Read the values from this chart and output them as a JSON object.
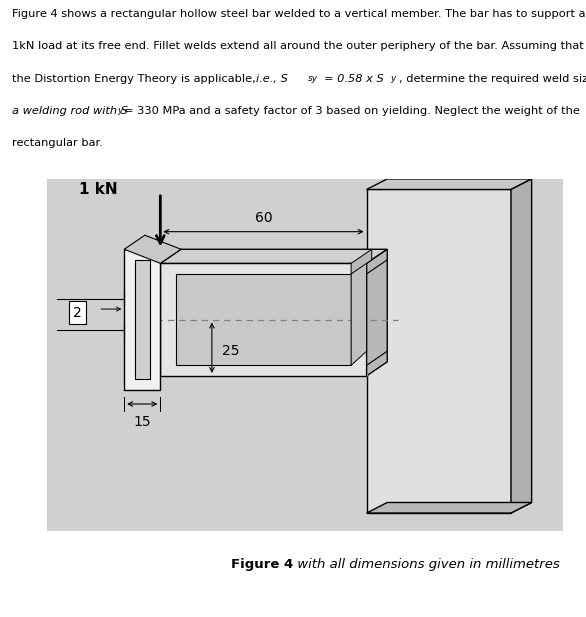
{
  "caption_bold": "Figure 4",
  "caption_rest": " with all dimensions given in millimetres",
  "bg_color": "#d8d8d8",
  "bg_gradient_left": "#cccccc",
  "bg_gradient_right": "#e8e8e8",
  "wall_face_color": "#e2e2e2",
  "wall_side_color": "#c8c8c8",
  "wall_edge_color": "#c0c0c0",
  "bar_top_color": "#d8d8d8",
  "bar_front_color": "#e8e8e8",
  "bar_right_color": "#c0c0c0",
  "bar_inner_color": "#cccccc",
  "cs_outer_color": "#f0f0f0",
  "cs_inner_color": "#d4d4d4",
  "label_1kN": "1 kN",
  "label_60": "60",
  "label_2": "2",
  "label_25": "25",
  "label_15": "15",
  "text_color": "#000000",
  "figure_bg": "#ffffff",
  "line_color": "#000000",
  "dash_color": "#888888"
}
